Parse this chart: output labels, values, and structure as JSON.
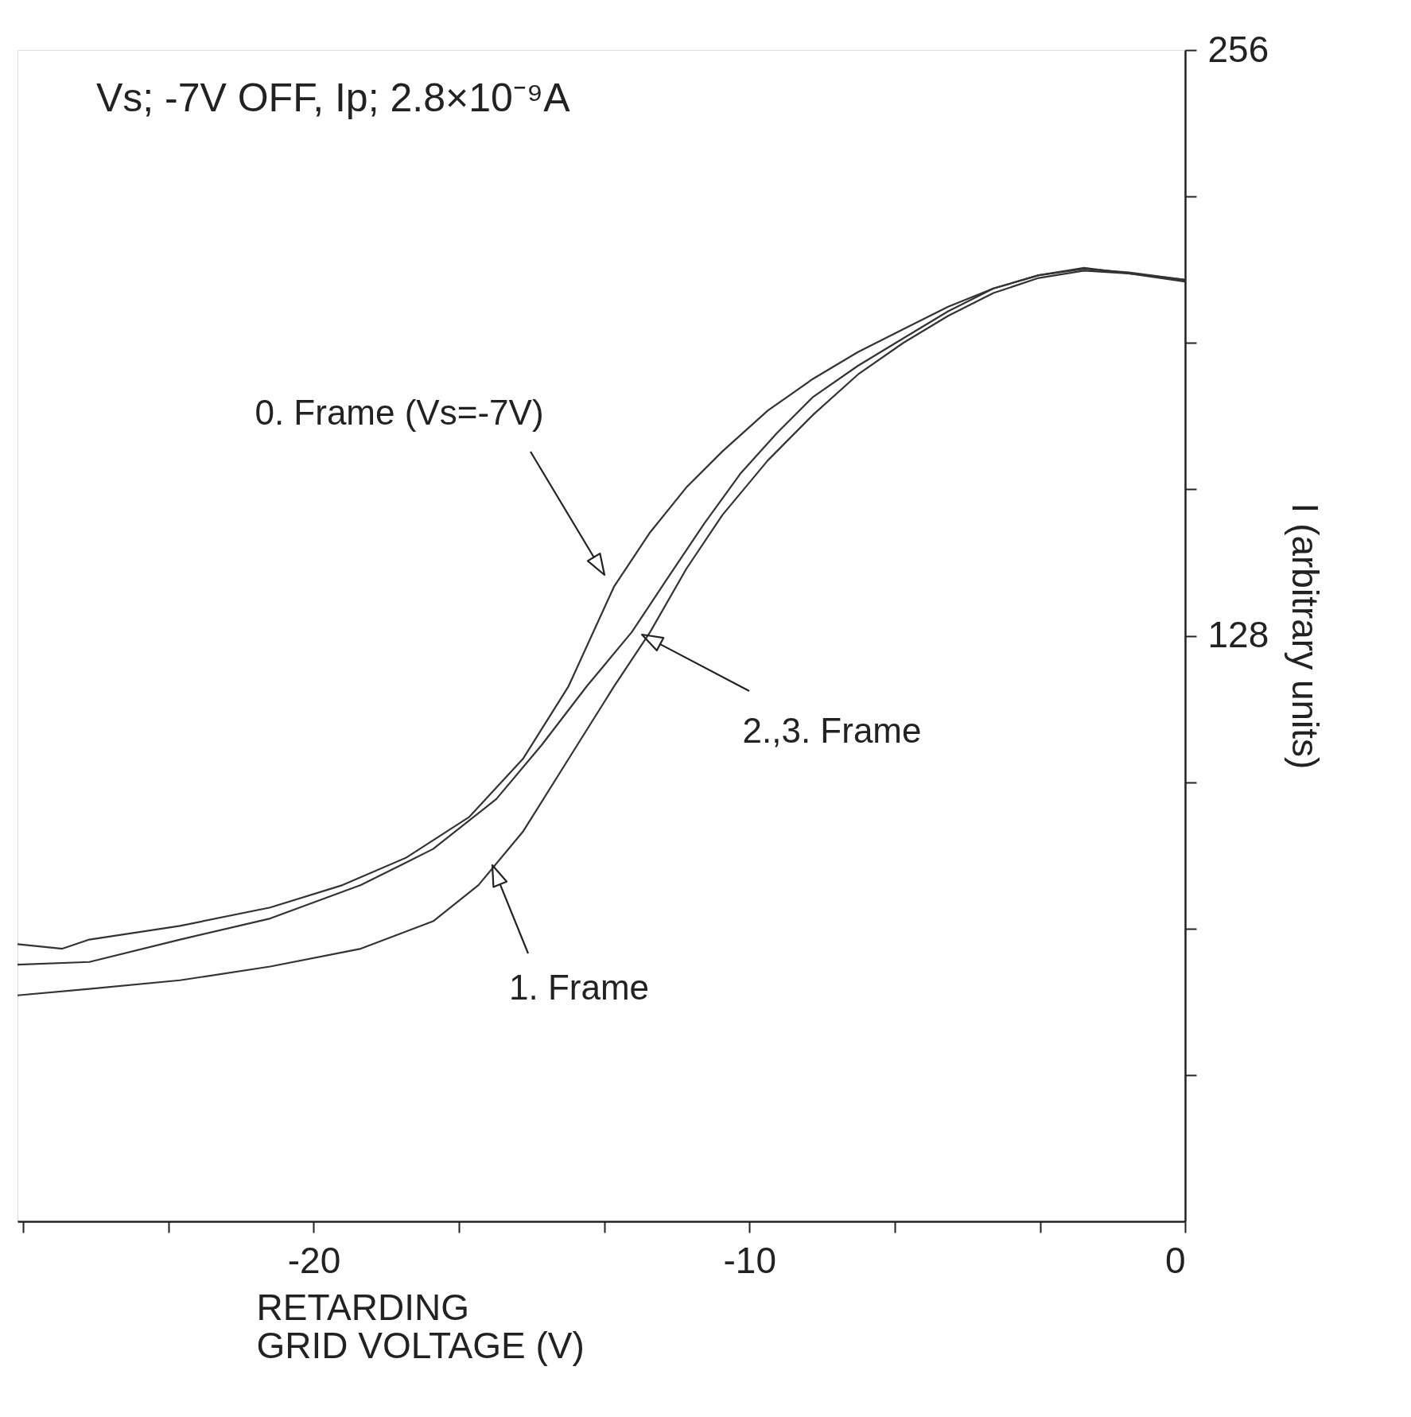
{
  "chart_data": {
    "type": "line",
    "title": "Vs; -7V OFF, Ip; 2.8×10⁻⁹A",
    "xlabel": "RETARDING\nGRID VOLTAGE (V)",
    "ylabel": "I (arbitrary units)",
    "xlim": [
      -26.8,
      0
    ],
    "ylim": [
      0,
      256
    ],
    "xticks": [
      {
        "value": -26.67,
        "label": null
      },
      {
        "value": -23.33,
        "label": null
      },
      -20,
      {
        "value": -16.67,
        "label": null
      },
      {
        "value": -13.33,
        "label": null
      },
      -10,
      {
        "value": -6.67,
        "label": null
      },
      {
        "value": -3.33,
        "label": null
      },
      0
    ],
    "yticks": [
      {
        "value": 32,
        "label": null
      },
      {
        "value": 64,
        "label": null
      },
      {
        "value": 96,
        "label": null
      },
      128,
      {
        "value": 160,
        "label": null
      },
      {
        "value": 192,
        "label": null
      },
      {
        "value": 224,
        "label": null
      },
      256
    ],
    "grid": false,
    "legend": false,
    "marker": "none",
    "line_style": "solid",
    "series": [
      {
        "color": "#333333",
        "x": [
          -26.8,
          -25.77,
          -25.15,
          -23.07,
          -21.0,
          -19.34,
          -17.88,
          -16.43,
          -15.19,
          -14.15,
          -13.11,
          -12.28,
          -11.45,
          -10.62,
          -9.58,
          -8.55,
          -7.51,
          -6.47,
          -5.44,
          -4.4,
          -3.36,
          -2.32,
          -1.29,
          0
        ],
        "values": [
          60.6,
          59.6,
          61.6,
          64.6,
          68.6,
          73.5,
          79.5,
          88.4,
          101.2,
          117.0,
          138.7,
          150.6,
          160.4,
          168.3,
          177.2,
          184.1,
          190.0,
          195.0,
          199.9,
          203.9,
          206.8,
          208.2,
          207.4,
          205.8
        ]
      },
      {
        "color": "#333333",
        "x": [
          -26.8,
          -25.15,
          -23.07,
          -21.0,
          -18.92,
          -17.26,
          -15.81,
          -14.77,
          -13.73,
          -12.7,
          -11.87,
          -11.04,
          -10.21,
          -9.38,
          -8.55,
          -7.51,
          -6.47,
          -5.44,
          -4.4,
          -3.36,
          -2.32,
          -1.29,
          0
        ],
        "values": [
          56.1,
          56.7,
          61.6,
          66.2,
          73.5,
          81.4,
          92.3,
          104.1,
          117.0,
          128.8,
          140.7,
          152.5,
          163.4,
          172.2,
          180.1,
          187.0,
          193.0,
          198.9,
          203.9,
          206.8,
          208.4,
          207.2,
          205.4
        ]
      },
      {
        "color": "#333333",
        "x": [
          -26.8,
          -25.15,
          -23.07,
          -21.0,
          -18.92,
          -17.26,
          -16.22,
          -15.19,
          -14.15,
          -13.11,
          -12.28,
          -11.45,
          -10.62,
          -9.58,
          -8.55,
          -7.51,
          -6.47,
          -5.44,
          -4.4,
          -3.36,
          -2.32,
          -1.29,
          0
        ],
        "values": [
          49.4,
          50.8,
          52.7,
          55.7,
          59.6,
          65.6,
          73.5,
          85.3,
          101.1,
          116.9,
          128.8,
          142.6,
          154.4,
          166.3,
          176.2,
          185.1,
          192.0,
          197.9,
          202.9,
          206.2,
          207.8,
          207.2,
          205.8
        ]
      }
    ],
    "annotations": [
      "0. Frame (Vs=-7V)",
      "2.,3. Frame",
      "1. Frame"
    ]
  }
}
